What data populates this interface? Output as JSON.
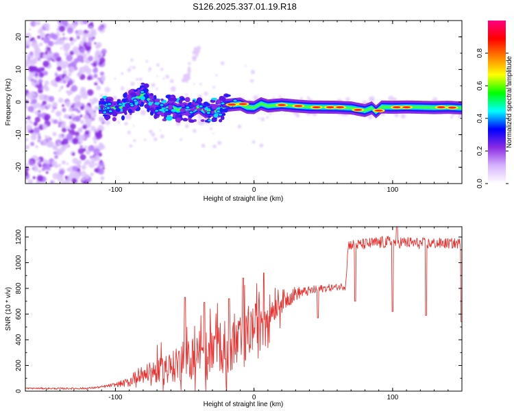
{
  "title": "S126.2025.337.01.19.R18",
  "chart_data": [
    {
      "type": "heatmap",
      "name": "spectrogram",
      "xlabel": "Height of straight line (km)",
      "ylabel": "Frequency (Hz)",
      "xlim": [
        -165,
        150
      ],
      "ylim": [
        -25,
        25
      ],
      "xticks": [
        -100,
        0,
        100
      ],
      "yticks": [
        -20,
        -10,
        0,
        10,
        20
      ],
      "ridge": [
        [
          -110,
          -1.6
        ],
        [
          -100,
          -1.8
        ],
        [
          -95,
          -1.5
        ],
        [
          -90,
          -0.3
        ],
        [
          -85,
          1.0
        ],
        [
          -80,
          2.5
        ],
        [
          -75,
          0.5
        ],
        [
          -70,
          -1.5
        ],
        [
          -65,
          -2.5
        ],
        [
          -60,
          -1.5
        ],
        [
          -55,
          -2.5
        ],
        [
          -50,
          -2.0
        ],
        [
          -45,
          -2.8
        ],
        [
          -40,
          -1.5
        ],
        [
          -35,
          -3.0
        ],
        [
          -30,
          -2.5
        ],
        [
          -25,
          -2.8
        ],
        [
          -22,
          -1.5
        ],
        [
          -20,
          -1.0
        ],
        [
          -15,
          -0.8
        ],
        [
          -10,
          -0.6
        ],
        [
          -5,
          -1.6
        ],
        [
          0,
          -1.7
        ],
        [
          5,
          -0.5
        ],
        [
          10,
          -1.2
        ],
        [
          20,
          -0.8
        ],
        [
          30,
          -1.2
        ],
        [
          40,
          -1.5
        ],
        [
          60,
          -1.6
        ],
        [
          70,
          -1.8
        ],
        [
          80,
          -2.6
        ],
        [
          85,
          -1.8
        ],
        [
          88,
          -3.0
        ],
        [
          92,
          -1.5
        ],
        [
          100,
          -1.6
        ],
        [
          110,
          -1.5
        ],
        [
          120,
          -1.6
        ],
        [
          130,
          -1.7
        ],
        [
          140,
          -1.6
        ],
        [
          150,
          -1.8
        ]
      ],
      "hotspots": [
        {
          "x": -16,
          "y": -0.8
        },
        {
          "x": -8,
          "y": -0.6
        },
        {
          "x": 20,
          "y": -0.9
        },
        {
          "x": 32,
          "y": -1.2
        },
        {
          "x": 45,
          "y": -1.6
        },
        {
          "x": 55,
          "y": -1.6
        },
        {
          "x": 62,
          "y": -1.6
        },
        {
          "x": 75,
          "y": -2.4
        },
        {
          "x": 90,
          "y": -2.6
        },
        {
          "x": 103,
          "y": -1.6
        },
        {
          "x": 110,
          "y": -1.6
        },
        {
          "x": 135,
          "y": -1.6
        },
        {
          "x": 143,
          "y": -1.7
        }
      ],
      "colorbar": {
        "label": "Normalized spectral amplitude",
        "range": [
          0,
          1
        ],
        "ticks": [
          0.0,
          0.2,
          0.4,
          0.6,
          0.8
        ],
        "tick_labels": [
          "0.0",
          "0.2",
          "0.4",
          "0.6",
          "0.8"
        ],
        "colors": [
          "#ffffff",
          "#d6b3ff",
          "#8a2be2",
          "#0000ff",
          "#00ffff",
          "#00ff00",
          "#ffff00",
          "#ff8000",
          "#ff0000",
          "#ff0080"
        ]
      }
    },
    {
      "type": "line",
      "name": "snr",
      "xlabel": "Height of straight line (km)",
      "ylabel": "SNR (10 * v/v)",
      "xlim": [
        -165,
        150
      ],
      "ylim": [
        0,
        1280
      ],
      "xticks": [
        -100,
        0,
        100
      ],
      "yticks": [
        0,
        200,
        400,
        600,
        800,
        1000,
        1200
      ],
      "color": "#e8312e",
      "trend": [
        [
          -165,
          22
        ],
        [
          -140,
          20
        ],
        [
          -120,
          22
        ],
        [
          -110,
          32
        ],
        [
          -100,
          50
        ],
        [
          -90,
          70
        ],
        [
          -83,
          130
        ],
        [
          -75,
          140
        ],
        [
          -65,
          170
        ],
        [
          -55,
          200
        ],
        [
          -45,
          260
        ],
        [
          -35,
          300
        ],
        [
          -25,
          330
        ],
        [
          -15,
          360
        ],
        [
          -10,
          370
        ],
        [
          -5,
          420
        ],
        [
          0,
          500
        ],
        [
          5,
          580
        ],
        [
          10,
          620
        ],
        [
          20,
          700
        ],
        [
          30,
          760
        ],
        [
          40,
          780
        ],
        [
          50,
          800
        ],
        [
          60,
          810
        ],
        [
          66,
          820
        ],
        [
          68,
          1140
        ],
        [
          75,
          1140
        ],
        [
          85,
          1150
        ],
        [
          95,
          1160
        ],
        [
          105,
          1160
        ],
        [
          120,
          1150
        ],
        [
          135,
          1150
        ],
        [
          150,
          1150
        ]
      ],
      "noise_bands": [
        [
          -165,
          6
        ],
        [
          -115,
          8
        ],
        [
          -100,
          15
        ],
        [
          -85,
          50
        ],
        [
          -60,
          120
        ],
        [
          -40,
          170
        ],
        [
          -20,
          210
        ],
        [
          -5,
          200
        ],
        [
          5,
          150
        ],
        [
          20,
          90
        ],
        [
          35,
          40
        ],
        [
          60,
          25
        ],
        [
          70,
          40
        ],
        [
          90,
          50
        ],
        [
          150,
          40
        ]
      ],
      "dips": [
        {
          "x": 46,
          "y": 570
        },
        {
          "x": 73,
          "y": 700
        },
        {
          "x": 100,
          "y": 620
        },
        {
          "x": 124,
          "y": 590
        },
        {
          "x": 149.5,
          "y": 540
        }
      ],
      "spikes": [
        {
          "x": -50,
          "y": 730
        },
        {
          "x": -36,
          "y": 690
        },
        {
          "x": -18,
          "y": 720
        },
        {
          "x": -8,
          "y": 880
        },
        {
          "x": 7,
          "y": 920
        },
        {
          "x": 103,
          "y": 1290
        }
      ]
    }
  ]
}
